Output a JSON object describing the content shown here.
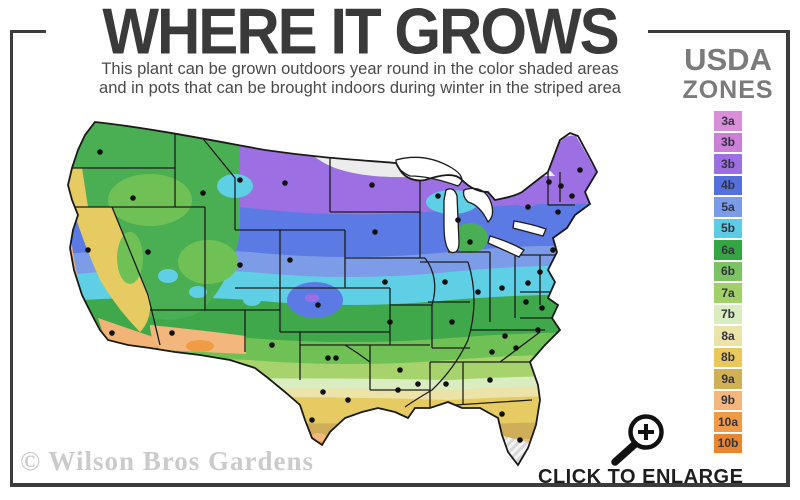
{
  "header": {
    "title": "WHERE IT GROWS",
    "subtitle_line1": "This plant can be grown outdoors year round in the color shaded areas",
    "subtitle_line2": "and in pots that can be brought indoors during winter in the striped area"
  },
  "legend": {
    "title_line1": "USDA",
    "title_line2": "ZONES",
    "zones": [
      {
        "label": "3a",
        "color": "#d98fd8"
      },
      {
        "label": "3b",
        "color": "#cc7fd6"
      },
      {
        "label": "3b",
        "color": "#9e6fe0"
      },
      {
        "label": "4b",
        "color": "#5570dc"
      },
      {
        "label": "5a",
        "color": "#7b9ce8"
      },
      {
        "label": "5b",
        "color": "#5bcce4"
      },
      {
        "label": "6a",
        "color": "#35a544"
      },
      {
        "label": "6b",
        "color": "#7cc364"
      },
      {
        "label": "7a",
        "color": "#a3d169"
      },
      {
        "label": "7b",
        "color": "#d9edc0"
      },
      {
        "label": "8a",
        "color": "#ece3a8"
      },
      {
        "label": "8b",
        "color": "#e9c95e"
      },
      {
        "label": "9a",
        "color": "#d1b156"
      },
      {
        "label": "9b",
        "color": "#f4b67c"
      },
      {
        "label": "10a",
        "color": "#f09a45"
      },
      {
        "label": "10b",
        "color": "#e8872f"
      }
    ]
  },
  "map": {
    "kind": "usa-hardiness-zone-map",
    "striped_region_note": "striped area (south Florida tip)"
  },
  "footer": {
    "watermark": "© Wilson Bros Gardens",
    "enlarge_label": "CLICK TO ENLARGE"
  },
  "icons": {
    "magnifier": "magnifying-glass-plus-icon"
  },
  "colors": {
    "frame": "#3c3c3c",
    "title_text": "#3a3a3a",
    "legend_title_text": "#7b7b7b",
    "watermark_text": "#cbcbcb"
  }
}
